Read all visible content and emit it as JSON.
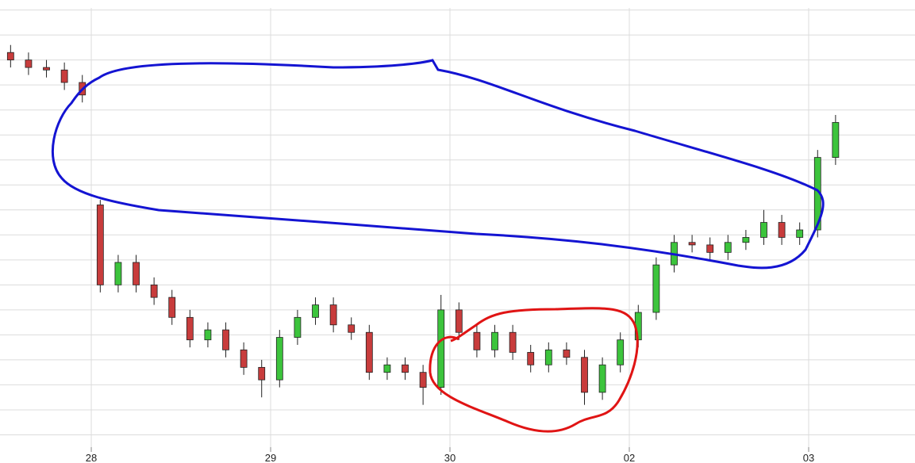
{
  "chart_data": {
    "type": "candlestick",
    "x": [
      -0.45,
      -0.35,
      -0.25,
      -0.15,
      -0.05,
      0.05,
      0.15,
      0.25,
      0.35,
      0.45,
      0.55,
      0.65,
      0.75,
      0.85,
      0.95,
      1.05,
      1.15,
      1.25,
      1.35,
      1.45,
      1.55,
      1.65,
      1.75,
      1.85,
      1.95,
      2.05,
      2.15,
      2.25,
      2.35,
      2.45,
      2.55,
      2.65,
      2.75,
      2.85,
      2.95,
      3.05,
      3.15,
      3.25,
      3.35,
      3.45,
      3.55,
      3.65,
      3.75,
      3.85,
      3.95,
      4.05,
      4.15
    ],
    "open": [
      163,
      160,
      157,
      156,
      151,
      102,
      70,
      79,
      70,
      65,
      57,
      48,
      52,
      44,
      37,
      32,
      49,
      57,
      62,
      54,
      51,
      35,
      38,
      35,
      29,
      60,
      51,
      44,
      51,
      43,
      38,
      44,
      41,
      27,
      38,
      48,
      59,
      78,
      87,
      86,
      83,
      87,
      89,
      95,
      89,
      92,
      121
    ],
    "high": [
      166,
      163,
      160,
      159,
      154,
      104,
      82,
      82,
      73,
      68,
      60,
      55,
      55,
      47,
      40,
      52,
      60,
      65,
      65,
      57,
      54,
      41,
      41,
      38,
      66,
      63,
      54,
      54,
      54,
      46,
      47,
      47,
      44,
      41,
      51,
      62,
      81,
      90,
      90,
      89,
      90,
      92,
      100,
      98,
      95,
      124,
      138
    ],
    "low": [
      157,
      154,
      153,
      148,
      143,
      67,
      67,
      67,
      62,
      54,
      45,
      45,
      41,
      34,
      25,
      29,
      46,
      54,
      51,
      48,
      32,
      32,
      32,
      22,
      26,
      48,
      41,
      41,
      40,
      35,
      35,
      38,
      22,
      24,
      35,
      45,
      56,
      75,
      83,
      80,
      80,
      84,
      86,
      86,
      86,
      89,
      118
    ],
    "close": [
      160,
      157,
      156,
      151,
      146,
      70,
      79,
      70,
      65,
      57,
      48,
      52,
      44,
      37,
      32,
      49,
      57,
      62,
      54,
      51,
      35,
      38,
      35,
      29,
      60,
      51,
      44,
      51,
      43,
      38,
      44,
      41,
      27,
      38,
      48,
      59,
      78,
      87,
      86,
      83,
      87,
      89,
      95,
      89,
      92,
      121,
      135
    ],
    "up_color": "#3cc43c",
    "down_color": "#c83c3c",
    "xlim": [
      -0.509,
      4.593
    ],
    "xticks": [
      {
        "value": 0,
        "label": "28"
      },
      {
        "value": 1,
        "label": "29"
      },
      {
        "value": 2,
        "label": "30"
      },
      {
        "value": 3,
        "label": "02"
      },
      {
        "value": 4,
        "label": "03"
      }
    ],
    "ylim": [
      0,
      184
    ],
    "yticks": [
      10,
      20,
      30,
      40,
      50,
      60,
      70,
      80,
      90,
      100,
      110,
      120,
      130,
      140,
      150,
      160,
      170,
      180
    ],
    "grid": true
  }
}
